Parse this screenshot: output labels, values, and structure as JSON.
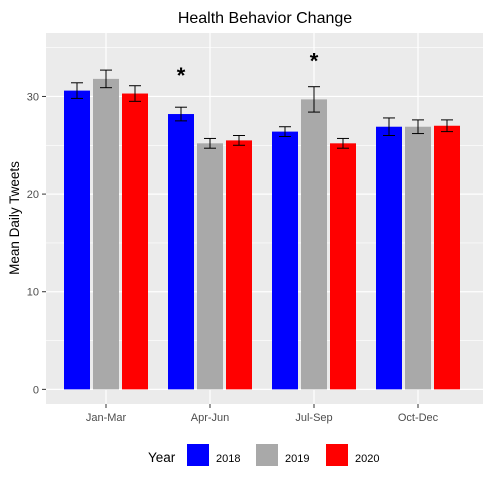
{
  "chart_data": {
    "type": "bar",
    "title": "Health Behavior Change",
    "xlabel": "",
    "ylabel": "Mean Daily Tweets",
    "categories": [
      "Jan-Mar",
      "Apr-Jun",
      "Jul-Sep",
      "Oct-Dec"
    ],
    "series": [
      {
        "name": "2018",
        "color": "#0000ff",
        "values": [
          30.6,
          28.2,
          26.4,
          26.9
        ],
        "error": [
          0.8,
          0.7,
          0.5,
          0.9
        ]
      },
      {
        "name": "2019",
        "color": "#a9a9a9",
        "values": [
          31.8,
          25.2,
          29.7,
          26.9
        ],
        "error": [
          0.9,
          0.5,
          1.3,
          0.7
        ]
      },
      {
        "name": "2020",
        "color": "#ff0000",
        "values": [
          30.3,
          25.5,
          25.2,
          27.0
        ],
        "error": [
          0.8,
          0.5,
          0.5,
          0.6
        ]
      }
    ],
    "yticks": [
      0,
      10,
      20,
      30
    ],
    "ylim": [
      -1.5,
      36.5
    ],
    "grid": true,
    "legend": {
      "title": "Year",
      "position": "bottom"
    },
    "annotations": [
      {
        "text": "*",
        "category": "Apr-Jun",
        "series": "2018",
        "y": 32.8
      },
      {
        "text": "*",
        "category": "Jul-Sep",
        "series": "2019",
        "y": 34.3
      }
    ]
  }
}
